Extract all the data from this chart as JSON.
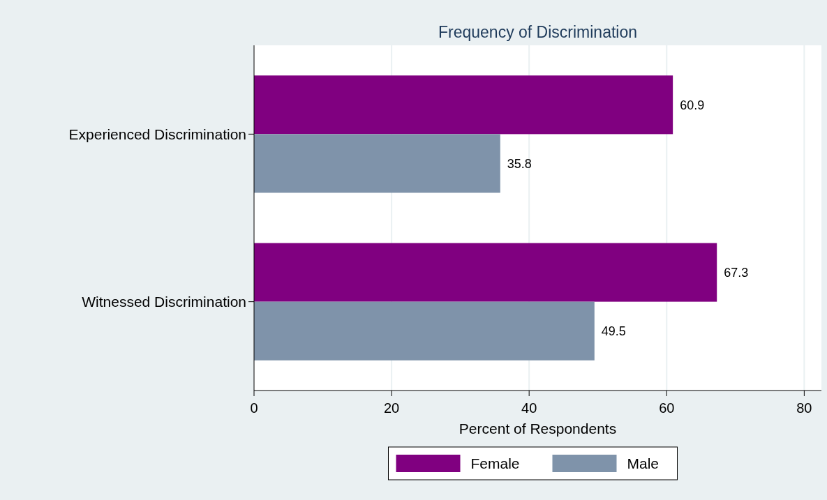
{
  "chart_data": {
    "type": "bar",
    "orientation": "horizontal",
    "title": "Frequency of Discrimination",
    "xlabel": "Percent of Respondents",
    "categories": [
      "Experienced Discrimination",
      "Witnessed Discrimination"
    ],
    "series": [
      {
        "name": "Female",
        "color": "#800080",
        "values": [
          60.9,
          67.3
        ]
      },
      {
        "name": "Male",
        "color": "#7f93aa",
        "values": [
          35.8,
          49.5
        ]
      }
    ],
    "xlim": [
      0,
      82.5
    ],
    "xticks": [
      0,
      20,
      40,
      60,
      80
    ],
    "grid": "x",
    "legend": "bottom",
    "data_labels": true
  }
}
